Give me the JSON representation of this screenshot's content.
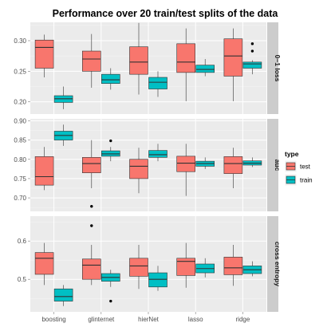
{
  "chart_data": {
    "type": "box",
    "title": "Performance over 20 train/test splits of the data",
    "categories": [
      "boosting",
      "glinternet",
      "hierNet",
      "lasso",
      "ridge"
    ],
    "legend": {
      "title": "type",
      "placement": "right",
      "entries": [
        "test",
        "train"
      ]
    },
    "colors": {
      "test": "#F8766D",
      "train": "#00BFC4",
      "panel_bg": "#ebebeb",
      "strip_bg": "#cccccc"
    },
    "panels": [
      {
        "strip": "0−1 loss",
        "ylim": [
          0.18,
          0.33
        ],
        "yticks": [
          0.2,
          0.25,
          0.3
        ],
        "ytick_labels": [
          "0.20",
          "0.25",
          "0.30"
        ],
        "series": [
          {
            "name": "test",
            "boxes": [
              {
                "category": "boosting",
                "min": 0.24,
                "q1": 0.255,
                "median": 0.289,
                "q3": 0.301,
                "max": 0.31,
                "outliers": []
              },
              {
                "category": "glinternet",
                "min": 0.223,
                "q1": 0.25,
                "median": 0.27,
                "q3": 0.283,
                "max": 0.311,
                "outliers": []
              },
              {
                "category": "hierNet",
                "min": 0.212,
                "q1": 0.245,
                "median": 0.265,
                "q3": 0.29,
                "max": 0.329,
                "outliers": []
              },
              {
                "category": "lasso",
                "min": 0.201,
                "q1": 0.248,
                "median": 0.265,
                "q3": 0.295,
                "max": 0.32,
                "outliers": []
              },
              {
                "category": "ridge",
                "min": 0.201,
                "q1": 0.242,
                "median": 0.275,
                "q3": 0.303,
                "max": 0.32,
                "outliers": []
              }
            ]
          },
          {
            "name": "train",
            "boxes": [
              {
                "category": "boosting",
                "min": 0.188,
                "q1": 0.199,
                "median": 0.205,
                "q3": 0.21,
                "max": 0.225,
                "outliers": []
              },
              {
                "category": "glinternet",
                "min": 0.22,
                "q1": 0.23,
                "median": 0.236,
                "q3": 0.245,
                "max": 0.255,
                "outliers": []
              },
              {
                "category": "hierNet",
                "min": 0.208,
                "q1": 0.221,
                "median": 0.232,
                "q3": 0.24,
                "max": 0.25,
                "outliers": []
              },
              {
                "category": "lasso",
                "min": 0.242,
                "q1": 0.248,
                "median": 0.253,
                "q3": 0.26,
                "max": 0.27,
                "outliers": []
              },
              {
                "category": "ridge",
                "min": 0.245,
                "q1": 0.255,
                "median": 0.262,
                "q3": 0.265,
                "max": 0.268,
                "outliers": [
                  0.283,
                  0.295
                ]
              }
            ]
          }
        ]
      },
      {
        "strip": "auc",
        "ylim": [
          0.665,
          0.905
        ],
        "yticks": [
          0.7,
          0.75,
          0.8,
          0.85,
          0.9
        ],
        "ytick_labels": [
          "0.70",
          "0.75",
          "0.80",
          "0.85",
          "0.90"
        ],
        "series": [
          {
            "name": "test",
            "boxes": [
              {
                "category": "boosting",
                "min": 0.72,
                "q1": 0.733,
                "median": 0.755,
                "q3": 0.807,
                "max": 0.832,
                "outliers": []
              },
              {
                "category": "glinternet",
                "min": 0.725,
                "q1": 0.765,
                "median": 0.789,
                "q3": 0.805,
                "max": 0.85,
                "outliers": [
                  0.678
                ]
              },
              {
                "category": "hierNet",
                "min": 0.712,
                "q1": 0.75,
                "median": 0.782,
                "q3": 0.8,
                "max": 0.83,
                "outliers": []
              },
              {
                "category": "lasso",
                "min": 0.705,
                "q1": 0.768,
                "median": 0.79,
                "q3": 0.808,
                "max": 0.84,
                "outliers": []
              },
              {
                "category": "ridge",
                "min": 0.725,
                "q1": 0.763,
                "median": 0.789,
                "q3": 0.807,
                "max": 0.83,
                "outliers": []
              }
            ]
          },
          {
            "name": "train",
            "boxes": [
              {
                "category": "boosting",
                "min": 0.835,
                "q1": 0.85,
                "median": 0.862,
                "q3": 0.873,
                "max": 0.89,
                "outliers": []
              },
              {
                "category": "glinternet",
                "min": 0.795,
                "q1": 0.808,
                "median": 0.814,
                "q3": 0.822,
                "max": 0.832,
                "outliers": [
                  0.848
                ]
              },
              {
                "category": "hierNet",
                "min": 0.795,
                "q1": 0.805,
                "median": 0.812,
                "q3": 0.823,
                "max": 0.84,
                "outliers": []
              },
              {
                "category": "lasso",
                "min": 0.775,
                "q1": 0.782,
                "median": 0.789,
                "q3": 0.795,
                "max": 0.805,
                "outliers": []
              },
              {
                "category": "ridge",
                "min": 0.78,
                "q1": 0.785,
                "median": 0.79,
                "q3": 0.796,
                "max": 0.805,
                "outliers": []
              }
            ]
          }
        ]
      },
      {
        "strip": "cross entropy",
        "ylim": [
          0.415,
          0.665
        ],
        "yticks": [
          0.5,
          0.6
        ],
        "ytick_labels": [
          "0.5",
          "0.6"
        ],
        "series": [
          {
            "name": "test",
            "boxes": [
              {
                "category": "boosting",
                "min": 0.485,
                "q1": 0.513,
                "median": 0.555,
                "q3": 0.57,
                "max": 0.595,
                "outliers": []
              },
              {
                "category": "glinternet",
                "min": 0.485,
                "q1": 0.5,
                "median": 0.537,
                "q3": 0.553,
                "max": 0.59,
                "outliers": [
                  0.64
                ]
              },
              {
                "category": "hierNet",
                "min": 0.475,
                "q1": 0.508,
                "median": 0.535,
                "q3": 0.555,
                "max": 0.59,
                "outliers": []
              },
              {
                "category": "lasso",
                "min": 0.478,
                "q1": 0.51,
                "median": 0.547,
                "q3": 0.555,
                "max": 0.595,
                "outliers": []
              },
              {
                "category": "ridge",
                "min": 0.483,
                "q1": 0.512,
                "median": 0.53,
                "q3": 0.558,
                "max": 0.59,
                "outliers": []
              }
            ]
          },
          {
            "name": "train",
            "boxes": [
              {
                "category": "boosting",
                "min": 0.43,
                "q1": 0.443,
                "median": 0.455,
                "q3": 0.475,
                "max": 0.485,
                "outliers": []
              },
              {
                "category": "glinternet",
                "min": 0.48,
                "q1": 0.495,
                "median": 0.505,
                "q3": 0.515,
                "max": 0.525,
                "outliers": [
                  0.443
                ]
              },
              {
                "category": "hierNet",
                "min": 0.47,
                "q1": 0.48,
                "median": 0.5,
                "q3": 0.517,
                "max": 0.535,
                "outliers": []
              },
              {
                "category": "lasso",
                "min": 0.505,
                "q1": 0.517,
                "median": 0.528,
                "q3": 0.54,
                "max": 0.555,
                "outliers": []
              },
              {
                "category": "ridge",
                "min": 0.508,
                "q1": 0.515,
                "median": 0.525,
                "q3": 0.535,
                "max": 0.547,
                "outliers": []
              }
            ]
          }
        ]
      }
    ]
  }
}
